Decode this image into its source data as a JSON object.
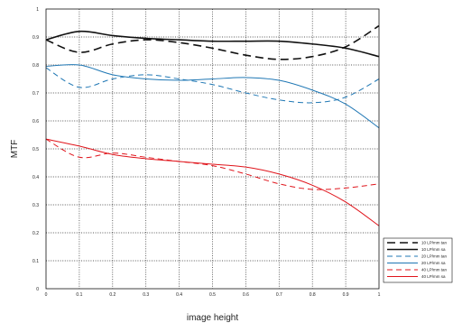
{
  "chart_data": {
    "type": "line",
    "xlabel": "image height",
    "ylabel": "MTF",
    "xlim": [
      0,
      1
    ],
    "ylim": [
      0,
      1
    ],
    "x_ticks": [
      "0",
      "0.1",
      "0.2",
      "0.3",
      "0.4",
      "0.5",
      "0.6",
      "0.7",
      "0.8",
      "0.9",
      "1"
    ],
    "y_ticks": [
      "0",
      "0.1",
      "0.2",
      "0.3",
      "0.4",
      "0.5",
      "0.6",
      "0.7",
      "0.8",
      "0.9",
      "1"
    ],
    "grid": true,
    "legend_position": "bottom-right",
    "x": [
      0,
      0.1,
      0.2,
      0.3,
      0.4,
      0.5,
      0.6,
      0.7,
      0.8,
      0.9,
      1
    ],
    "series": [
      {
        "name": "10 LP/mm tan",
        "color": "#111111",
        "dash": "dashed",
        "values": [
          0.89,
          0.845,
          0.875,
          0.89,
          0.88,
          0.86,
          0.835,
          0.82,
          0.83,
          0.865,
          0.94
        ]
      },
      {
        "name": "10 LP/mm sa",
        "color": "#111111",
        "dash": "solid",
        "values": [
          0.89,
          0.92,
          0.905,
          0.895,
          0.89,
          0.885,
          0.885,
          0.885,
          0.875,
          0.86,
          0.83
        ]
      },
      {
        "name": "20 LP/mm tan",
        "color": "#1f77b4",
        "dash": "dashed",
        "values": [
          0.79,
          0.72,
          0.75,
          0.765,
          0.75,
          0.73,
          0.7,
          0.675,
          0.665,
          0.685,
          0.75
        ]
      },
      {
        "name": "20 LP/mm sa",
        "color": "#1f77b4",
        "dash": "solid",
        "values": [
          0.795,
          0.8,
          0.765,
          0.75,
          0.745,
          0.75,
          0.755,
          0.745,
          0.71,
          0.66,
          0.575
        ]
      },
      {
        "name": "40 LP/mm tan",
        "color": "#e0141b",
        "dash": "dashed",
        "values": [
          0.535,
          0.47,
          0.485,
          0.47,
          0.455,
          0.44,
          0.41,
          0.375,
          0.355,
          0.36,
          0.375
        ]
      },
      {
        "name": "40 LP/mm sa",
        "color": "#e0141b",
        "dash": "solid",
        "values": [
          0.535,
          0.51,
          0.48,
          0.465,
          0.455,
          0.445,
          0.435,
          0.41,
          0.37,
          0.31,
          0.225
        ]
      }
    ]
  }
}
